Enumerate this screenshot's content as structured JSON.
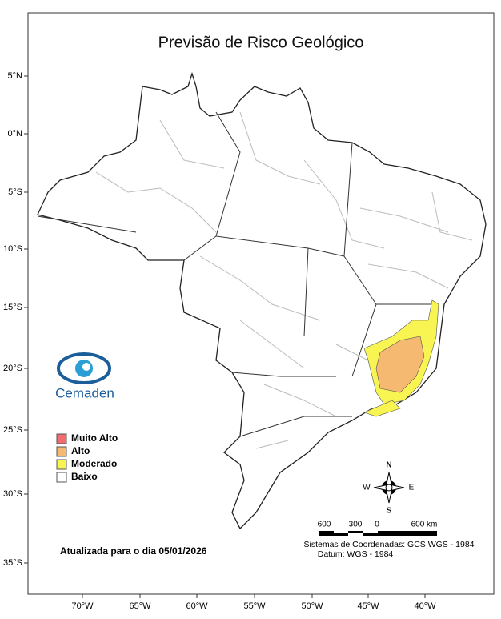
{
  "title": "Previsão de Risco Geológico",
  "latitude_labels": [
    "5°N",
    "0°N",
    "5°S",
    "10°S",
    "15°S",
    "20°S",
    "25°S",
    "30°S",
    "35°S"
  ],
  "longitude_labels": [
    "70°W",
    "65°W",
    "60°W",
    "55°W",
    "50°W",
    "45°W",
    "40°W"
  ],
  "logo": "Cemaden",
  "legend": [
    {
      "label": "Muito Alto",
      "color": "#f26d6d"
    },
    {
      "label": "Alto",
      "color": "#f5b971"
    },
    {
      "label": "Moderado",
      "color": "#f8f552"
    },
    {
      "label": "Baixo",
      "color": "#ffffff"
    }
  ],
  "compass": {
    "north": "N",
    "south": "S",
    "east": "E",
    "west": "W"
  },
  "scale_labels": [
    "600",
    "300",
    "0",
    "600 km"
  ],
  "coordinate_system": "Sistemas de Coordenadas: GCS WGS - 1984",
  "datum": "Datum: WGS - 1984",
  "updated": "Atualizada para o dia 05/01/2026"
}
